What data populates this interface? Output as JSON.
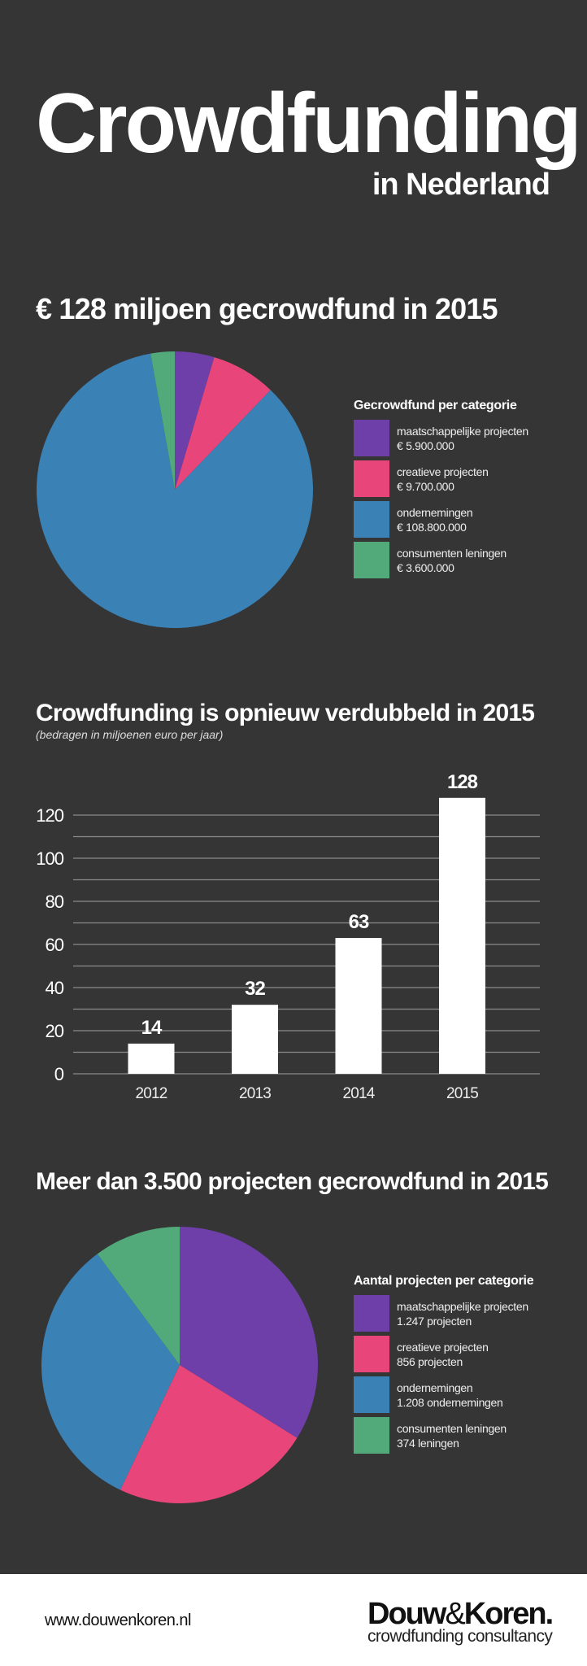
{
  "header": {
    "title": "Crowdfunding",
    "subtitle": "in Nederland"
  },
  "colors": {
    "purple": "#6e3fa8",
    "pink": "#e8467a",
    "blue": "#3a81b5",
    "green": "#52a97a",
    "background": "#353535"
  },
  "chart_data": [
    {
      "type": "pie",
      "title": "€ 128 miljoen gecrowdfund in 2015",
      "legend_title": "Gecrowdfund per categorie",
      "legend_placement": "right",
      "slices": [
        {
          "label": "maatschappelijke projecten",
          "value": 5900000,
          "display": "€ 5.900.000",
          "color": "#6e3fa8"
        },
        {
          "label": "creatieve projecten",
          "value": 9700000,
          "display": "€ 9.700.000",
          "color": "#e8467a"
        },
        {
          "label": "ondernemingen",
          "value": 108800000,
          "display": "€ 108.800.000",
          "color": "#3a81b5"
        },
        {
          "label": "consumenten leningen",
          "value": 3600000,
          "display": "€ 3.600.000",
          "color": "#52a97a"
        }
      ]
    },
    {
      "type": "bar",
      "title": "Crowdfunding is opnieuw verdubbeld in 2015",
      "subtitle": "(bedragen in miljoenen euro per jaar)",
      "categories": [
        "2012",
        "2013",
        "2014",
        "2015"
      ],
      "values": [
        14,
        32,
        63,
        128
      ],
      "data_labels": [
        "14",
        "32",
        "63",
        "128"
      ],
      "ylim": [
        0,
        120
      ],
      "yticks": [
        "0",
        "20",
        "40",
        "60",
        "80",
        "100",
        "120"
      ],
      "grid_step": 10,
      "grid": true,
      "xlabel": "",
      "ylabel": ""
    },
    {
      "type": "pie",
      "title": "Meer dan 3.500 projecten gecrowdfund in 2015",
      "legend_title": "Aantal projecten per categorie",
      "legend_placement": "right",
      "slices": [
        {
          "label": "maatschappelijke projecten",
          "value": 1247,
          "display": "1.247 projecten",
          "color": "#6e3fa8"
        },
        {
          "label": "creatieve projecten",
          "value": 856,
          "display": "856 projecten",
          "color": "#e8467a"
        },
        {
          "label": "ondernemingen",
          "value": 1208,
          "display": "1.208 ondernemingen",
          "color": "#3a81b5"
        },
        {
          "label": "consumenten leningen",
          "value": 374,
          "display": "374 leningen",
          "color": "#52a97a"
        }
      ]
    }
  ],
  "footer": {
    "url": "www.douwenkoren.nl",
    "logo_name_a": "Douw",
    "logo_amp": "&",
    "logo_name_b": "Koren.",
    "logo_tagline": "crowdfunding consultancy"
  }
}
